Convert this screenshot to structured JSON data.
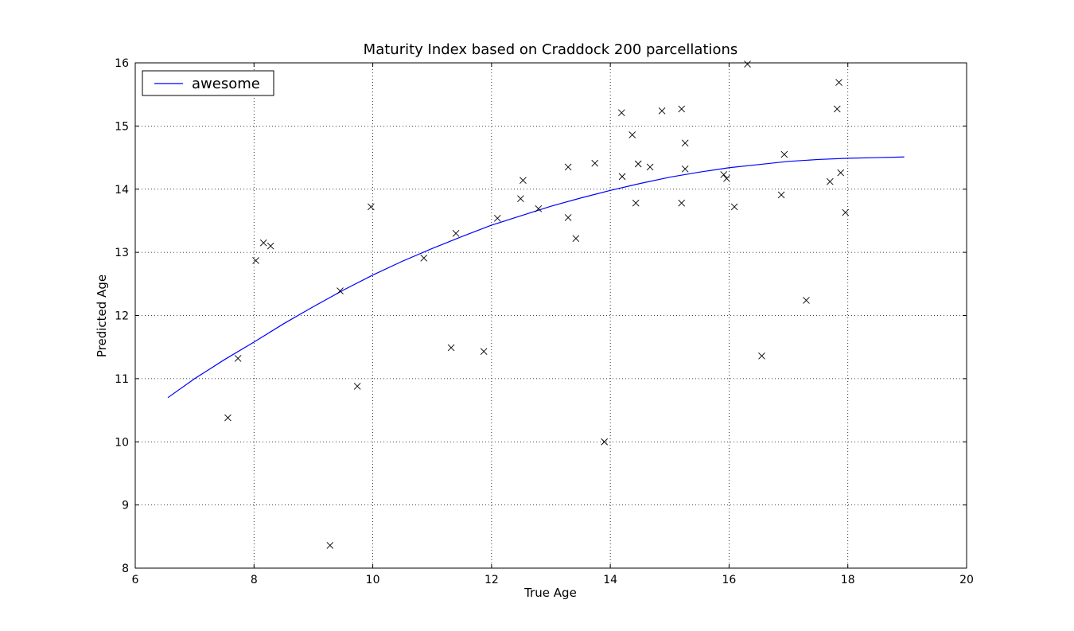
{
  "chart_data": {
    "type": "scatter",
    "title": "Maturity Index based on Craddock 200 parcellations",
    "xlabel": "True Age",
    "ylabel": "Predicted Age",
    "xlim": [
      6,
      20
    ],
    "ylim": [
      8,
      16
    ],
    "xticks": [
      6,
      8,
      10,
      12,
      14,
      16,
      18,
      20
    ],
    "yticks": [
      8,
      9,
      10,
      11,
      12,
      13,
      14,
      15,
      16
    ],
    "grid": true,
    "legend": {
      "placement": "top-left",
      "entries": [
        "awesome"
      ]
    },
    "colors": {
      "fit_line": "#0000ff",
      "points": "#000000"
    },
    "series": [
      {
        "kind": "line",
        "name": "awesome",
        "x": [
          6.55,
          7.0,
          7.5,
          8.0,
          8.5,
          9.0,
          9.5,
          10.0,
          10.5,
          11.0,
          11.5,
          12.0,
          12.5,
          13.0,
          13.5,
          14.0,
          14.5,
          15.0,
          15.5,
          16.0,
          16.5,
          17.0,
          17.5,
          18.0,
          18.5,
          18.95
        ],
        "y": [
          10.7,
          11.0,
          11.3,
          11.58,
          11.87,
          12.14,
          12.4,
          12.64,
          12.86,
          13.06,
          13.25,
          13.43,
          13.58,
          13.73,
          13.86,
          13.98,
          14.09,
          14.19,
          14.27,
          14.34,
          14.39,
          14.44,
          14.47,
          14.49,
          14.5,
          14.51
        ]
      },
      {
        "kind": "scatter",
        "marker": "x",
        "points": [
          [
            7.56,
            10.38
          ],
          [
            7.73,
            11.32
          ],
          [
            8.03,
            12.87
          ],
          [
            8.16,
            13.15
          ],
          [
            8.28,
            13.1
          ],
          [
            9.28,
            8.36
          ],
          [
            9.45,
            12.39
          ],
          [
            9.74,
            10.88
          ],
          [
            9.97,
            13.72
          ],
          [
            10.86,
            12.91
          ],
          [
            11.32,
            11.49
          ],
          [
            11.4,
            13.3
          ],
          [
            11.87,
            11.43
          ],
          [
            12.1,
            13.54
          ],
          [
            12.49,
            13.85
          ],
          [
            12.53,
            14.14
          ],
          [
            12.79,
            13.69
          ],
          [
            13.29,
            14.35
          ],
          [
            13.29,
            13.55
          ],
          [
            13.42,
            13.22
          ],
          [
            13.74,
            14.41
          ],
          [
            13.9,
            10.0
          ],
          [
            14.19,
            15.21
          ],
          [
            14.2,
            14.2
          ],
          [
            14.37,
            14.86
          ],
          [
            14.43,
            13.78
          ],
          [
            14.47,
            14.4
          ],
          [
            14.67,
            14.35
          ],
          [
            14.87,
            15.24
          ],
          [
            15.2,
            15.27
          ],
          [
            15.2,
            13.78
          ],
          [
            15.26,
            14.73
          ],
          [
            15.26,
            14.32
          ],
          [
            15.91,
            14.23
          ],
          [
            15.96,
            14.17
          ],
          [
            16.09,
            13.72
          ],
          [
            16.31,
            15.98
          ],
          [
            16.55,
            11.36
          ],
          [
            16.88,
            13.91
          ],
          [
            16.93,
            14.55
          ],
          [
            17.3,
            12.24
          ],
          [
            17.7,
            14.12
          ],
          [
            17.82,
            15.27
          ],
          [
            17.85,
            15.69
          ],
          [
            17.88,
            14.26
          ],
          [
            17.96,
            13.63
          ]
        ]
      }
    ]
  }
}
